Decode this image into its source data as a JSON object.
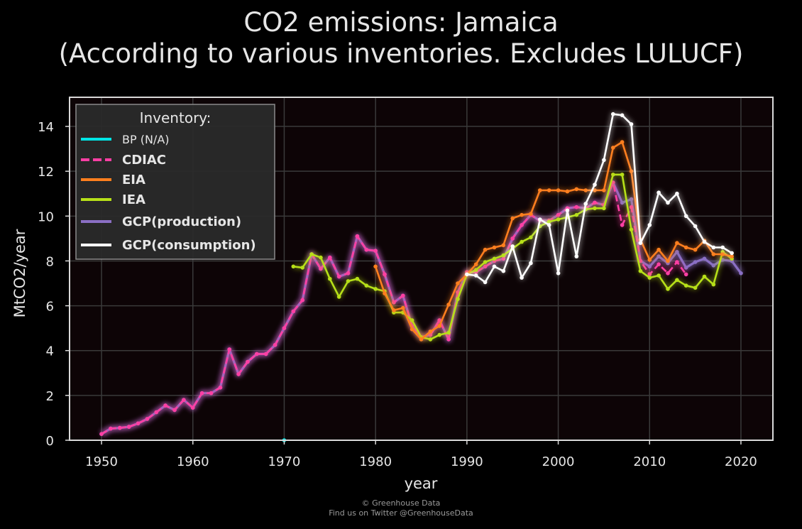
{
  "title_line1": "CO2 emissions: Jamaica",
  "title_line2": "(According to various inventories. Excludes LULUCF)",
  "credit_line1": "© Greenhouse Data",
  "credit_line2": "Find us on Twitter @GreenhouseData",
  "chart_data": {
    "type": "line",
    "xlabel": "year",
    "ylabel": "MtCO2/year",
    "xlim": [
      1946.5,
      2023.5
    ],
    "ylim": [
      0,
      15.3
    ],
    "xticks": [
      1950,
      1960,
      1970,
      1980,
      1990,
      2000,
      2010,
      2020
    ],
    "yticks": [
      0,
      2,
      4,
      6,
      8,
      10,
      12,
      14
    ],
    "grid": true,
    "background": "#0d0406",
    "legend": {
      "title": "Inventory:",
      "placement": "top-left",
      "entries": [
        "BP (N/A)",
        "CDIAC",
        "EIA",
        "IEA",
        "GCP(production)",
        "GCP(consumption)"
      ]
    },
    "series": [
      {
        "name": "BP (N/A)",
        "color": "#00e5e5",
        "style": "solid",
        "x": [
          1970
        ],
        "y": [
          0.0
        ]
      },
      {
        "name": "CDIAC",
        "color": "#ff3fa4",
        "style": "dashed",
        "x": [
          1950,
          1951,
          1952,
          1953,
          1954,
          1955,
          1956,
          1957,
          1958,
          1959,
          1960,
          1961,
          1962,
          1963,
          1964,
          1965,
          1966,
          1967,
          1968,
          1969,
          1970,
          1971,
          1972,
          1973,
          1974,
          1975,
          1976,
          1977,
          1978,
          1979,
          1980,
          1981,
          1982,
          1983,
          1984,
          1985,
          1986,
          1987,
          1988,
          1989,
          1990,
          1991,
          1992,
          1993,
          1994,
          1995,
          1996,
          1997,
          1998,
          1999,
          2000,
          2001,
          2002,
          2003,
          2004,
          2005,
          2006,
          2007,
          2008,
          2009,
          2010,
          2011,
          2012,
          2013,
          2014
        ],
        "y": [
          0.28,
          0.52,
          0.55,
          0.6,
          0.75,
          0.95,
          1.25,
          1.55,
          1.35,
          1.8,
          1.45,
          2.1,
          2.1,
          2.35,
          4.05,
          2.95,
          3.5,
          3.85,
          3.85,
          4.25,
          5.0,
          5.75,
          6.25,
          8.3,
          7.65,
          8.15,
          7.3,
          7.45,
          9.1,
          8.5,
          8.45,
          7.4,
          6.15,
          6.45,
          5.1,
          4.6,
          4.7,
          5.35,
          4.5,
          6.6,
          7.5,
          7.5,
          7.75,
          8.0,
          8.1,
          9.0,
          9.6,
          10.05,
          9.8,
          9.8,
          10.05,
          10.35,
          10.4,
          10.35,
          10.6,
          10.5,
          11.5,
          9.6,
          10.4,
          8.0,
          7.4,
          7.85,
          7.45,
          7.95,
          7.4
        ]
      },
      {
        "name": "EIA",
        "color": "#ff7f1e",
        "style": "solid",
        "x": [
          1980,
          1981,
          1982,
          1983,
          1984,
          1985,
          1986,
          1987,
          1988,
          1989,
          1990,
          1991,
          1992,
          1993,
          1994,
          1995,
          1996,
          1997,
          1998,
          1999,
          2000,
          2001,
          2002,
          2003,
          2004,
          2005,
          2006,
          2007,
          2008,
          2009,
          2010,
          2011,
          2012,
          2013,
          2014,
          2015,
          2016,
          2017,
          2018,
          2019
        ],
        "y": [
          7.75,
          6.55,
          5.8,
          5.9,
          4.95,
          4.5,
          4.85,
          5.1,
          6.05,
          7.0,
          7.4,
          7.85,
          8.5,
          8.6,
          8.7,
          9.9,
          10.05,
          10.1,
          11.15,
          11.15,
          11.15,
          11.1,
          11.2,
          11.15,
          11.15,
          11.15,
          13.05,
          13.3,
          12.0,
          8.95,
          8.05,
          8.5,
          8.0,
          8.8,
          8.6,
          8.5,
          8.9,
          8.3,
          8.3,
          8.2
        ]
      },
      {
        "name": "IEA",
        "color": "#b7e018",
        "style": "solid",
        "x": [
          1971,
          1972,
          1973,
          1974,
          1975,
          1976,
          1977,
          1978,
          1979,
          1980,
          1981,
          1982,
          1983,
          1984,
          1985,
          1986,
          1987,
          1988,
          1989,
          1990,
          1991,
          1992,
          1993,
          1994,
          1995,
          1996,
          1997,
          1998,
          1999,
          2000,
          2001,
          2002,
          2003,
          2004,
          2005,
          2006,
          2007,
          2008,
          2009,
          2010,
          2011,
          2012,
          2013,
          2014,
          2015,
          2016,
          2017,
          2018,
          2019
        ],
        "y": [
          7.75,
          7.7,
          8.3,
          8.15,
          7.2,
          6.4,
          7.1,
          7.2,
          6.9,
          6.75,
          6.65,
          5.7,
          5.7,
          5.35,
          4.6,
          4.5,
          4.7,
          4.8,
          6.3,
          7.4,
          7.6,
          7.95,
          8.1,
          8.25,
          8.55,
          8.85,
          9.05,
          9.55,
          9.75,
          9.85,
          9.95,
          10.05,
          10.3,
          10.35,
          10.35,
          11.85,
          11.85,
          9.4,
          7.55,
          7.25,
          7.35,
          6.75,
          7.15,
          6.9,
          6.8,
          7.3,
          6.95,
          8.4,
          8.1
        ]
      },
      {
        "name": "GCP(production)",
        "color": "#8a6fc4",
        "style": "solid",
        "x": [
          1950,
          1951,
          1952,
          1953,
          1954,
          1955,
          1956,
          1957,
          1958,
          1959,
          1960,
          1961,
          1962,
          1963,
          1964,
          1965,
          1966,
          1967,
          1968,
          1969,
          1970,
          1971,
          1972,
          1973,
          1974,
          1975,
          1976,
          1977,
          1978,
          1979,
          1980,
          1981,
          1982,
          1983,
          1984,
          1985,
          1986,
          1987,
          1988,
          1989,
          1990,
          1991,
          1992,
          1993,
          1994,
          1995,
          1996,
          1997,
          1998,
          1999,
          2000,
          2001,
          2002,
          2003,
          2004,
          2005,
          2006,
          2007,
          2008,
          2009,
          2010,
          2011,
          2012,
          2013,
          2014,
          2015,
          2016,
          2017,
          2018,
          2019,
          2020
        ],
        "y": [
          0.28,
          0.52,
          0.55,
          0.6,
          0.75,
          0.95,
          1.25,
          1.55,
          1.35,
          1.8,
          1.45,
          2.1,
          2.1,
          2.35,
          4.05,
          2.95,
          3.5,
          3.85,
          3.85,
          4.25,
          5.0,
          5.75,
          6.25,
          8.3,
          7.65,
          8.15,
          7.3,
          7.45,
          9.1,
          8.5,
          8.45,
          7.4,
          6.15,
          6.45,
          5.1,
          4.6,
          4.7,
          5.35,
          4.5,
          6.6,
          7.5,
          7.5,
          7.75,
          8.0,
          8.1,
          9.0,
          9.6,
          10.05,
          9.8,
          9.8,
          10.05,
          10.35,
          10.4,
          10.35,
          10.6,
          10.5,
          11.5,
          10.6,
          10.75,
          8.0,
          7.75,
          8.2,
          7.9,
          8.4,
          7.7,
          7.95,
          8.1,
          7.8,
          8.05,
          8.0,
          7.45
        ]
      },
      {
        "name": "GCP(consumption)",
        "color": "#ffffff",
        "style": "solid",
        "x": [
          1990,
          1991,
          1992,
          1993,
          1994,
          1995,
          1996,
          1997,
          1998,
          1999,
          2000,
          2001,
          2002,
          2003,
          2004,
          2005,
          2006,
          2007,
          2008,
          2009,
          2010,
          2011,
          2012,
          2013,
          2014,
          2015,
          2016,
          2017,
          2018,
          2019
        ],
        "y": [
          7.4,
          7.35,
          7.05,
          7.75,
          7.55,
          8.65,
          7.25,
          7.9,
          9.85,
          9.6,
          7.45,
          10.25,
          8.2,
          10.55,
          11.4,
          12.5,
          14.55,
          14.5,
          14.1,
          8.8,
          9.6,
          11.05,
          10.6,
          11.0,
          10.0,
          9.55,
          8.85,
          8.6,
          8.6,
          8.35
        ]
      }
    ]
  }
}
